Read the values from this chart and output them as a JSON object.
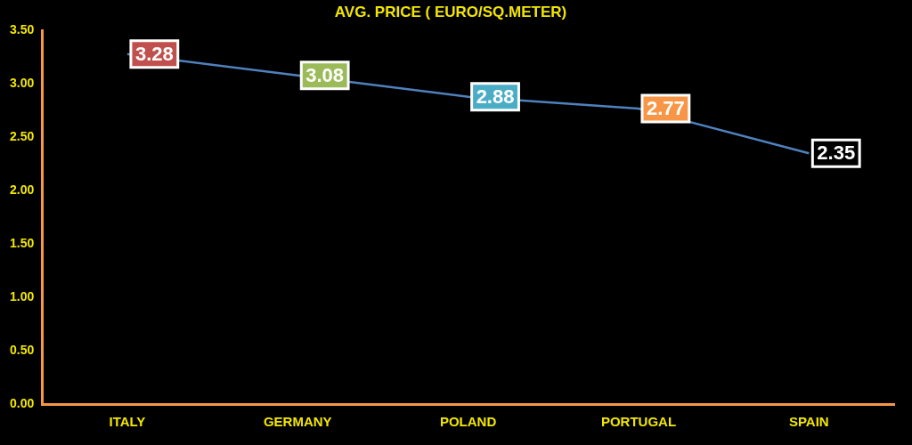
{
  "chart_data": {
    "type": "line",
    "title": "AVG. PRICE ( EURO/SQ.METER)",
    "categories": [
      "ITALY",
      "GERMANY",
      "POLAND",
      "PORTUGAL",
      "SPAIN"
    ],
    "series": [
      {
        "color": "#4f81bd",
        "values": [
          3.28,
          3.08,
          2.88,
          2.77,
          2.35
        ],
        "colors": [
          "#c0504d",
          "#9bbb59",
          "#4bacc6",
          "#f79646",
          "#000000"
        ]
      }
    ],
    "ylim": [
      0,
      3.5
    ],
    "yticks": [
      {
        "value": 0,
        "label": "0.00"
      },
      {
        "value": 0.5,
        "label": "0.50"
      },
      {
        "value": 1,
        "label": "1.00"
      },
      {
        "value": 1.5,
        "label": "1.50"
      },
      {
        "value": 2,
        "label": "2.00"
      },
      {
        "value": 2.5,
        "label": "2.50"
      },
      {
        "value": 3,
        "label": "3.00"
      },
      {
        "value": 3.5,
        "label": "3.50"
      }
    ],
    "grid": false,
    "legend": false,
    "marker": "none",
    "data_labels": true
  }
}
